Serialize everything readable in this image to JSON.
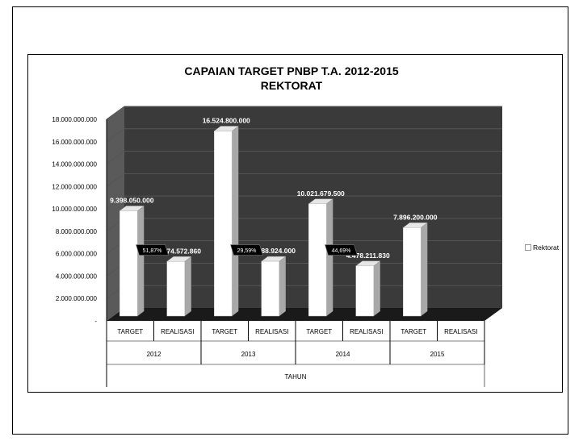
{
  "chart_data": {
    "type": "bar",
    "title": [
      "CAPAIAN TARGET PNBP T.A. 2012-2015",
      "REKTORAT"
    ],
    "xlabel": "TAHUN",
    "ylabel": "",
    "ylim": [
      0,
      18000000000
    ],
    "yticks": [
      {
        "value": 0,
        "label": "-"
      },
      {
        "value": 2000000000,
        "label": "2.000.000.000"
      },
      {
        "value": 4000000000,
        "label": "4.000.000.000"
      },
      {
        "value": 6000000000,
        "label": "6.000.000.000"
      },
      {
        "value": 8000000000,
        "label": "8.000.000.000"
      },
      {
        "value": 10000000000,
        "label": "10.000.000.000"
      },
      {
        "value": 12000000000,
        "label": "12.000.000.000"
      },
      {
        "value": 14000000000,
        "label": "14.000.000.000"
      },
      {
        "value": 16000000000,
        "label": "16.000.000.000"
      },
      {
        "value": 18000000000,
        "label": "18.000.000.000"
      }
    ],
    "grid": true,
    "legend": {
      "entries": [
        "Rektorat"
      ],
      "placement": "right"
    },
    "groups": [
      {
        "year": "2012",
        "bars": [
          {
            "category": "TARGET",
            "value": 9398050000,
            "label": "9.398.050.000"
          },
          {
            "category": "REALISASI",
            "value": 4874572860,
            "label": "4.874.572.860"
          }
        ],
        "percent": "51,87%"
      },
      {
        "year": "2013",
        "bars": [
          {
            "category": "TARGET",
            "value": 16524800000,
            "label": "16.524.800.000"
          },
          {
            "category": "REALISASI",
            "value": 4888924000,
            "label": "4.888.924.000"
          }
        ],
        "percent": "29,59%"
      },
      {
        "year": "2014",
        "bars": [
          {
            "category": "TARGET",
            "value": 10021679500,
            "label": "10.021.679.500"
          },
          {
            "category": "REALISASI",
            "value": 4478211830,
            "label": "4.478.211.830"
          }
        ],
        "percent": "44,69%"
      },
      {
        "year": "2015",
        "bars": [
          {
            "category": "TARGET",
            "value": 7896200000,
            "label": "7.896.200.000"
          },
          {
            "category": "REALISASI",
            "value": 0,
            "label": ""
          }
        ],
        "percent": ""
      }
    ],
    "colors": {
      "plot_bg": "#3a3a3a",
      "floor": "#1a1a1a",
      "bar": "#ffffff",
      "bar_side": "#a8a8a8",
      "callout": "#000000"
    }
  }
}
